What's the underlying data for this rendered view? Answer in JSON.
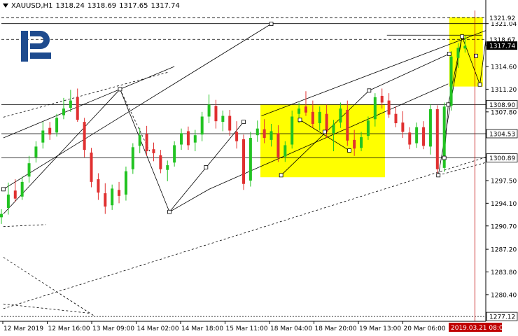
{
  "header": {
    "symbol": "XAUUSD,H1",
    "ohlc": [
      "1318.24",
      "1318.69",
      "1317.65",
      "1317.74"
    ]
  },
  "chart_data": {
    "type": "candlestick",
    "ylim": [
      1276.4,
      1323.0
    ],
    "y_ticks": [
      1321.04,
      1317.74,
      1314.6,
      1311.2,
      1307.8,
      1304.53,
      1301.0,
      1297.5,
      1294.1,
      1290.7,
      1287.2,
      1283.8,
      1280.4,
      1277.0
    ],
    "y_tick_labels": [
      "1321.04",
      "1317.74",
      "1314.60",
      "1311.20",
      "1307.80",
      "1304.53",
      "1301.00",
      "1297.50",
      "1294.10",
      "1290.70",
      "1287.20",
      "1283.80",
      "1280.40",
      "1277.00"
    ],
    "price_tags": [
      {
        "value": 1321.92,
        "label": "1321.92",
        "style": "plain"
      },
      {
        "value": 1318.67,
        "label": "1318.67",
        "style": "plain"
      },
      {
        "value": 1317.74,
        "label": "1317.74",
        "style": "dark"
      },
      {
        "value": 1308.9,
        "label": "1308.90",
        "style": "boxed"
      },
      {
        "value": 1304.53,
        "label": "1304.53",
        "style": "boxed"
      },
      {
        "value": 1300.89,
        "label": "1300.89",
        "style": "boxed"
      },
      {
        "value": 1277.12,
        "label": "1277.12",
        "style": "boxed"
      }
    ],
    "x_labels": [
      "12 Mar 2019",
      "12 Mar 16:00",
      "13 Mar 09:00",
      "14 Mar 02:00",
      "14 Mar 18:00",
      "15 Mar 11:00",
      "18 Mar 04:00",
      "18 Mar 20:00",
      "19 Mar 13:00",
      "20 Mar 06:00"
    ],
    "x_highlight_label": "2019.03.21 08:00",
    "hlines_dashed": [
      1321.92,
      1318.67
    ],
    "hlines_solid": [
      1308.9,
      1304.53,
      1300.89,
      1321.04
    ],
    "hlines_dotted": [
      1277.12
    ],
    "colors": {
      "bull": "#22c322",
      "bear": "#e03030",
      "zone": "#ffff00",
      "vline": "#c00000",
      "tag_dark": "#000000"
    },
    "zones": [
      {
        "t0": 262,
        "t1": 388,
        "lo": 1298.0,
        "hi": 1308.9
      },
      {
        "t0": 453,
        "t1": 487,
        "lo": 1311.6,
        "hi": 1322.0
      }
    ],
    "anchor_points": [
      {
        "t": 2,
        "p": 1296.2
      },
      {
        "t": 120,
        "p": 1311.2
      },
      {
        "t": 170,
        "p": 1292.8
      },
      {
        "t": 207,
        "p": 1299.5
      },
      {
        "t": 245,
        "p": 1306.3
      },
      {
        "t": 283,
        "p": 1298.3
      },
      {
        "t": 302,
        "p": 1306.6
      },
      {
        "t": 327,
        "p": 1304.8
      },
      {
        "t": 352,
        "p": 1302.0
      },
      {
        "t": 372,
        "p": 1311.0
      },
      {
        "t": 442,
        "p": 1298.3
      },
      {
        "t": 448,
        "p": 1300.9
      },
      {
        "t": 452,
        "p": 1308.9
      },
      {
        "t": 453,
        "p": 1316.5
      },
      {
        "t": 466,
        "p": 1319.1
      },
      {
        "t": 480,
        "p": 1316.2
      },
      {
        "t": 484,
        "p": 1311.9
      },
      {
        "t": 273,
        "p": 1321.0
      }
    ],
    "trend_lines": [
      [
        [
          2,
          1296.2
        ],
        [
          273,
          1321.0
        ]
      ],
      [
        [
          2,
          1303.9
        ],
        [
          175,
          1314.6
        ]
      ],
      [
        [
          2,
          1292.5
        ],
        [
          120,
          1311.2
        ]
      ],
      [
        [
          120,
          1311.2
        ],
        [
          170,
          1292.8
        ]
      ],
      [
        [
          170,
          1292.8
        ],
        [
          245,
          1306.3
        ]
      ],
      [
        [
          170,
          1292.8
        ],
        [
          210,
          1296.2
        ]
      ],
      [
        [
          210,
          1296.2
        ],
        [
          452,
          1312.0
        ]
      ],
      [
        [
          302,
          1306.6
        ],
        [
          352,
          1302.0
        ]
      ],
      [
        [
          283,
          1298.3
        ],
        [
          372,
          1311.0
        ]
      ],
      [
        [
          372,
          1311.0
        ],
        [
          453,
          1316.5
        ]
      ],
      [
        [
          442,
          1298.3
        ],
        [
          466,
          1319.1
        ]
      ],
      [
        [
          448,
          1300.9
        ],
        [
          452,
          1308.9
        ]
      ],
      [
        [
          452,
          1308.9
        ],
        [
          466,
          1319.1
        ]
      ],
      [
        [
          466,
          1319.1
        ],
        [
          484,
          1311.9
        ]
      ],
      [
        [
          484,
          1311.9
        ],
        [
          490,
          1318.6
        ]
      ],
      [
        [
          263,
          1307.2
        ],
        [
          490,
          1320.0
        ]
      ],
      [
        [
          390,
          1319.3
        ],
        [
          486,
          1319.3
        ]
      ]
    ],
    "dashed_lines": [
      [
        [
          2,
          1307.0
        ],
        [
          170,
          1313.8
        ]
      ],
      [
        [
          120,
          1311.2
        ],
        [
          150,
          1301.9
        ]
      ],
      [
        [
          2,
          1290.6
        ],
        [
          45,
          1290.9
        ]
      ],
      [
        [
          2,
          1278.3
        ],
        [
          490,
          1301.0
        ]
      ],
      [
        [
          442,
          1298.3
        ],
        [
          490,
          1300.2
        ]
      ],
      [
        [
          2,
          1286.0
        ],
        [
          95,
          1277.1
        ]
      ],
      [
        [
          2,
          1279.0
        ],
        [
          90,
          1277.6
        ]
      ]
    ],
    "series": [
      {
        "t": 0,
        "o": 1292.0,
        "h": 1293.2,
        "l": 1291.0,
        "c": 1292.5
      },
      {
        "t": 7,
        "o": 1293.4,
        "h": 1297.2,
        "l": 1292.4,
        "c": 1295.4
      },
      {
        "t": 14,
        "o": 1296.0,
        "h": 1297.7,
        "l": 1294.3,
        "c": 1294.8
      },
      {
        "t": 21,
        "o": 1295.1,
        "h": 1298.1,
        "l": 1294.6,
        "c": 1297.3
      },
      {
        "t": 28,
        "o": 1298.1,
        "h": 1301.2,
        "l": 1297.2,
        "c": 1300.1
      },
      {
        "t": 35,
        "o": 1301.0,
        "h": 1303.4,
        "l": 1300.2,
        "c": 1302.6
      },
      {
        "t": 42,
        "o": 1303.2,
        "h": 1306.3,
        "l": 1302.3,
        "c": 1305.0
      },
      {
        "t": 49,
        "o": 1305.4,
        "h": 1306.3,
        "l": 1303.6,
        "c": 1304.4
      },
      {
        "t": 56,
        "o": 1304.7,
        "h": 1307.5,
        "l": 1304.1,
        "c": 1306.9
      },
      {
        "t": 63,
        "o": 1307.3,
        "h": 1309.9,
        "l": 1306.7,
        "c": 1308.3
      },
      {
        "t": 70,
        "o": 1308.4,
        "h": 1311.1,
        "l": 1307.8,
        "c": 1309.5
      },
      {
        "t": 77,
        "o": 1310.0,
        "h": 1311.3,
        "l": 1306.3,
        "c": 1306.6
      },
      {
        "t": 84,
        "o": 1306.3,
        "h": 1306.9,
        "l": 1301.0,
        "c": 1302.1
      },
      {
        "t": 91,
        "o": 1301.7,
        "h": 1302.4,
        "l": 1296.5,
        "c": 1297.3
      },
      {
        "t": 98,
        "o": 1297.7,
        "h": 1298.6,
        "l": 1294.6,
        "c": 1295.7
      },
      {
        "t": 105,
        "o": 1295.6,
        "h": 1297.1,
        "l": 1292.5,
        "c": 1293.6
      },
      {
        "t": 112,
        "o": 1293.8,
        "h": 1296.9,
        "l": 1293.1,
        "c": 1296.3
      },
      {
        "t": 119,
        "o": 1296.1,
        "h": 1297.3,
        "l": 1294.1,
        "c": 1295.2
      },
      {
        "t": 126,
        "o": 1295.4,
        "h": 1299.6,
        "l": 1294.5,
        "c": 1298.9
      },
      {
        "t": 133,
        "o": 1299.2,
        "h": 1303.1,
        "l": 1298.5,
        "c": 1302.5
      },
      {
        "t": 140,
        "o": 1302.7,
        "h": 1305.4,
        "l": 1301.6,
        "c": 1304.3
      },
      {
        "t": 147,
        "o": 1304.5,
        "h": 1305.7,
        "l": 1301.2,
        "c": 1301.9
      },
      {
        "t": 154,
        "o": 1302.2,
        "h": 1303.2,
        "l": 1300.4,
        "c": 1301.6
      },
      {
        "t": 161,
        "o": 1301.3,
        "h": 1302.1,
        "l": 1298.6,
        "c": 1299.2
      },
      {
        "t": 168,
        "o": 1299.1,
        "h": 1300.5,
        "l": 1297.4,
        "c": 1299.8
      },
      {
        "t": 175,
        "o": 1300.2,
        "h": 1303.4,
        "l": 1299.6,
        "c": 1302.8
      },
      {
        "t": 182,
        "o": 1302.9,
        "h": 1305.3,
        "l": 1302.1,
        "c": 1304.6
      },
      {
        "t": 189,
        "o": 1304.9,
        "h": 1305.6,
        "l": 1302.1,
        "c": 1302.8
      },
      {
        "t": 196,
        "o": 1303.2,
        "h": 1305.1,
        "l": 1301.9,
        "c": 1304.3
      },
      {
        "t": 203,
        "o": 1304.4,
        "h": 1307.8,
        "l": 1303.4,
        "c": 1307.1
      },
      {
        "t": 210,
        "o": 1307.1,
        "h": 1310.4,
        "l": 1306.1,
        "c": 1308.9
      },
      {
        "t": 217,
        "o": 1308.7,
        "h": 1309.6,
        "l": 1305.3,
        "c": 1306.4
      },
      {
        "t": 224,
        "o": 1306.3,
        "h": 1308.0,
        "l": 1304.9,
        "c": 1307.2
      },
      {
        "t": 231,
        "o": 1307.2,
        "h": 1308.1,
        "l": 1304.2,
        "c": 1305.0
      },
      {
        "t": 238,
        "o": 1304.8,
        "h": 1306.4,
        "l": 1302.3,
        "c": 1303.4
      },
      {
        "t": 245,
        "o": 1303.7,
        "h": 1304.4,
        "l": 1296.1,
        "c": 1297.0
      },
      {
        "t": 252,
        "o": 1297.5,
        "h": 1304.8,
        "l": 1296.6,
        "c": 1303.9
      },
      {
        "t": 259,
        "o": 1304.3,
        "h": 1306.5,
        "l": 1303.3,
        "c": 1305.3
      },
      {
        "t": 266,
        "o": 1305.2,
        "h": 1306.7,
        "l": 1303.1,
        "c": 1303.9
      },
      {
        "t": 273,
        "o": 1303.6,
        "h": 1306.0,
        "l": 1302.6,
        "c": 1304.9
      },
      {
        "t": 280,
        "o": 1304.6,
        "h": 1305.8,
        "l": 1300.3,
        "c": 1301.0
      },
      {
        "t": 287,
        "o": 1301.1,
        "h": 1303.4,
        "l": 1300.3,
        "c": 1302.8
      },
      {
        "t": 294,
        "o": 1302.9,
        "h": 1308.0,
        "l": 1302.3,
        "c": 1307.1
      },
      {
        "t": 301,
        "o": 1307.5,
        "h": 1309.2,
        "l": 1306.1,
        "c": 1308.3
      },
      {
        "t": 308,
        "o": 1308.6,
        "h": 1310.9,
        "l": 1307.2,
        "c": 1307.7
      },
      {
        "t": 315,
        "o": 1307.8,
        "h": 1309.5,
        "l": 1305.4,
        "c": 1306.0
      },
      {
        "t": 322,
        "o": 1306.1,
        "h": 1308.6,
        "l": 1305.0,
        "c": 1307.8
      },
      {
        "t": 329,
        "o": 1307.5,
        "h": 1308.9,
        "l": 1303.9,
        "c": 1304.8
      },
      {
        "t": 336,
        "o": 1304.6,
        "h": 1306.6,
        "l": 1301.9,
        "c": 1305.9
      },
      {
        "t": 343,
        "o": 1306.2,
        "h": 1309.2,
        "l": 1305.4,
        "c": 1308.3
      },
      {
        "t": 350,
        "o": 1308.1,
        "h": 1309.5,
        "l": 1302.7,
        "c": 1303.5
      },
      {
        "t": 357,
        "o": 1303.6,
        "h": 1305.1,
        "l": 1301.2,
        "c": 1302.3
      },
      {
        "t": 364,
        "o": 1302.4,
        "h": 1304.8,
        "l": 1301.9,
        "c": 1304.0
      },
      {
        "t": 371,
        "o": 1304.2,
        "h": 1307.1,
        "l": 1303.6,
        "c": 1306.5
      },
      {
        "t": 378,
        "o": 1306.7,
        "h": 1310.6,
        "l": 1305.6,
        "c": 1310.0
      },
      {
        "t": 385,
        "o": 1310.2,
        "h": 1311.3,
        "l": 1308.3,
        "c": 1309.2
      },
      {
        "t": 392,
        "o": 1309.5,
        "h": 1310.6,
        "l": 1306.9,
        "c": 1307.4
      },
      {
        "t": 399,
        "o": 1307.5,
        "h": 1308.6,
        "l": 1305.5,
        "c": 1306.1
      },
      {
        "t": 406,
        "o": 1306.2,
        "h": 1307.9,
        "l": 1303.9,
        "c": 1304.8
      },
      {
        "t": 413,
        "o": 1304.7,
        "h": 1305.5,
        "l": 1302.2,
        "c": 1302.9
      },
      {
        "t": 420,
        "o": 1303.1,
        "h": 1306.2,
        "l": 1302.4,
        "c": 1305.5
      },
      {
        "t": 427,
        "o": 1305.5,
        "h": 1306.4,
        "l": 1302.2,
        "c": 1302.7
      },
      {
        "t": 434,
        "o": 1302.6,
        "h": 1308.9,
        "l": 1301.4,
        "c": 1308.2
      },
      {
        "t": 441,
        "o": 1308.2,
        "h": 1308.8,
        "l": 1298.3,
        "c": 1299.2
      },
      {
        "t": 448,
        "o": 1299.4,
        "h": 1309.2,
        "l": 1298.8,
        "c": 1308.6
      },
      {
        "t": 455,
        "o": 1308.7,
        "h": 1316.9,
        "l": 1308.0,
        "c": 1316.1
      },
      {
        "t": 462,
        "o": 1315.9,
        "h": 1318.1,
        "l": 1314.4,
        "c": 1317.4
      },
      {
        "t": 469,
        "o": 1317.3,
        "h": 1319.2,
        "l": 1316.7,
        "c": 1317.7
      }
    ]
  }
}
